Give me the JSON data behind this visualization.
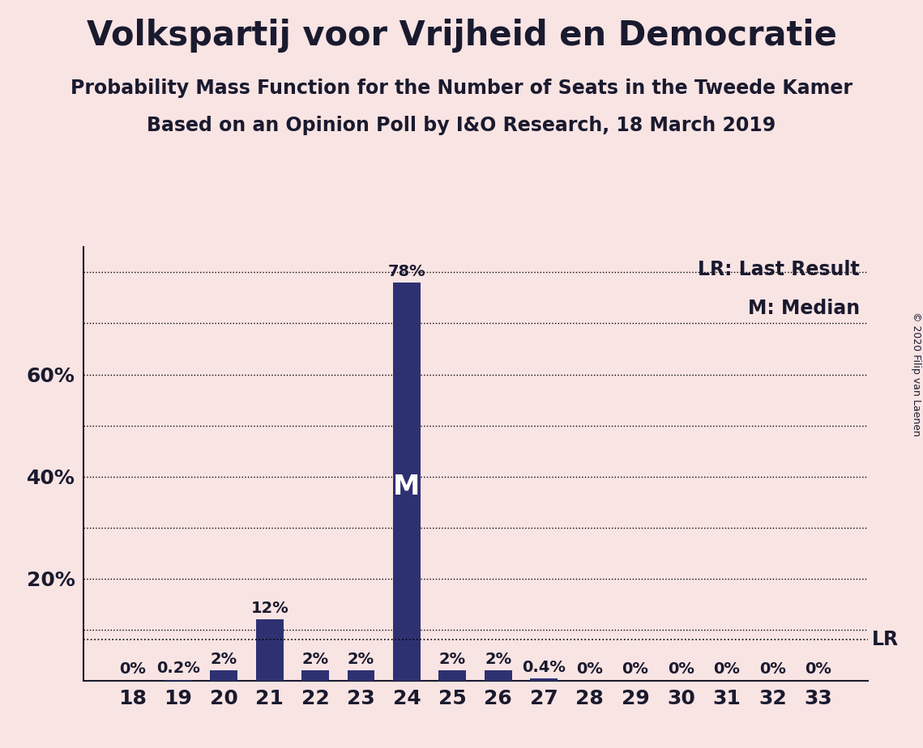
{
  "title": "Volkspartij voor Vrijheid en Democratie",
  "subtitle1": "Probability Mass Function for the Number of Seats in the Tweede Kamer",
  "subtitle2": "Based on an Opinion Poll by I&O Research, 18 March 2019",
  "copyright": "© 2020 Filip van Laenen",
  "seats": [
    18,
    19,
    20,
    21,
    22,
    23,
    24,
    25,
    26,
    27,
    28,
    29,
    30,
    31,
    32,
    33
  ],
  "probabilities": [
    0.0,
    0.2,
    2.0,
    12.0,
    2.0,
    2.0,
    78.0,
    2.0,
    2.0,
    0.4,
    0.0,
    0.0,
    0.0,
    0.0,
    0.0,
    0.0
  ],
  "labels": [
    "0%",
    "0.2%",
    "2%",
    "12%",
    "2%",
    "2%",
    "78%",
    "2%",
    "2%",
    "0.4%",
    "0%",
    "0%",
    "0%",
    "0%",
    "0%",
    "0%"
  ],
  "bar_color": "#2e3171",
  "background_color": "#f9e4e4",
  "median_seat": 24,
  "lr_value": 8.0,
  "ylim": [
    0,
    85
  ],
  "grid_ticks": [
    10,
    20,
    30,
    40,
    50,
    60,
    70,
    80
  ],
  "ytick_positions": [
    20,
    40,
    60
  ],
  "ytick_labels": [
    "20%",
    "40%",
    "60%"
  ],
  "grid_color": "#000000",
  "text_color": "#1a1a2e",
  "title_fontsize": 30,
  "subtitle_fontsize": 17,
  "axis_tick_fontsize": 18,
  "bar_label_fontsize": 14,
  "annotation_fontsize": 17,
  "lr_annotation_fontsize": 17,
  "median_fontsize": 24,
  "copyright_fontsize": 9
}
